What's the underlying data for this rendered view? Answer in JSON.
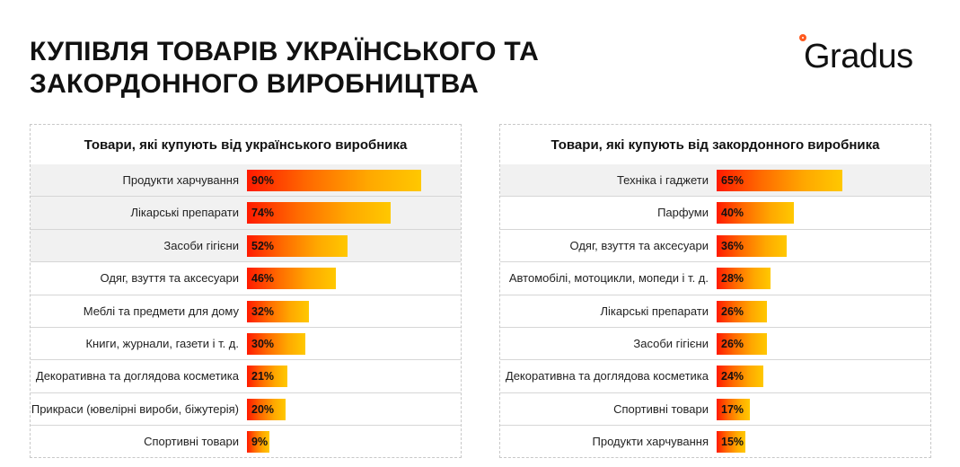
{
  "header": {
    "title_line1": "Купівля товарів українського та",
    "title_line2": "закордонного виробництва",
    "logo": "Gradus"
  },
  "colors": {
    "bar_start": "#ff1a00",
    "bar_end": "#ffc800",
    "highlight_row": "#f1f1f1"
  },
  "chart_data": [
    {
      "type": "bar",
      "orientation": "horizontal",
      "title": "Товари, які купують від українського виробника",
      "categories": [
        "Продукти харчування",
        "Лікарські препарати",
        "Засоби гігієни",
        "Одяг, взуття та аксесуари",
        "Меблі та предмети для дому",
        "Книги, журнали, газети і т. д.",
        "Декоративна та доглядова косметика",
        "Прикраси (ювелірні вироби, біжутерія)",
        "Спортивні товари"
      ],
      "values": [
        90,
        74,
        52,
        46,
        32,
        30,
        21,
        20,
        9
      ],
      "labels": [
        "90%",
        "74%",
        "52%",
        "46%",
        "32%",
        "30%",
        "21%",
        "20%",
        "9%"
      ],
      "highlighted_rows": 3,
      "unit": "%"
    },
    {
      "type": "bar",
      "orientation": "horizontal",
      "title": "Товари, які купують від закордонного виробника",
      "categories": [
        "Техніка і гаджети",
        "Парфуми",
        "Одяг, взуття та аксесуари",
        "Автомобілі, мотоцикли, мопеди і т. д.",
        "Лікарські препарати",
        "Засоби гігієни",
        "Декоративна та доглядова косметика",
        "Спортивні товари",
        "Продукти харчування"
      ],
      "values": [
        65,
        40,
        36,
        28,
        26,
        26,
        24,
        17,
        15
      ],
      "labels": [
        "65%",
        "40%",
        "36%",
        "28%",
        "26%",
        "26%",
        "24%",
        "17%",
        "15%"
      ],
      "highlighted_rows": 1,
      "unit": "%"
    }
  ]
}
